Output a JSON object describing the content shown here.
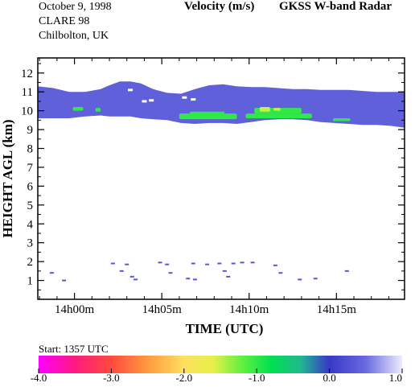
{
  "header": {
    "date": "October   9, 1998",
    "campaign": "CLARE 98",
    "location": "Chilbolton, UK",
    "quantity": "Velocity (m/s)",
    "instrument": "GKSS  W-band Radar"
  },
  "chart_data": {
    "type": "heatmap",
    "title": "Velocity (m/s)",
    "xlabel": "TIME (UTC)",
    "ylabel": "HEIGHT AGL (km)",
    "x_unit": "minutes after 14h00m",
    "xlim": [
      -2.1,
      18.9
    ],
    "ylim": [
      0,
      12.8
    ],
    "x_ticks": [
      {
        "value": 0,
        "label": "14h00m"
      },
      {
        "value": 5,
        "label": "14h05m"
      },
      {
        "value": 10,
        "label": "14h10m"
      },
      {
        "value": 15,
        "label": "14h15m"
      }
    ],
    "y_ticks": [
      {
        "value": 1,
        "label": "1"
      },
      {
        "value": 2,
        "label": "2"
      },
      {
        "value": 3,
        "label": "3"
      },
      {
        "value": 4,
        "label": "4"
      },
      {
        "value": 5,
        "label": "5"
      },
      {
        "value": 6,
        "label": "6"
      },
      {
        "value": 7,
        "label": "7"
      },
      {
        "value": 8,
        "label": "8"
      },
      {
        "value": 9,
        "label": "9"
      },
      {
        "value": 10,
        "label": "10"
      },
      {
        "value": 11,
        "label": "11"
      },
      {
        "value": 12,
        "label": "12"
      }
    ],
    "cloud_layer": {
      "x": [
        -2.1,
        -1.2,
        -0.3,
        0.6,
        1.5,
        2.0,
        2.6,
        3.2,
        3.8,
        4.5,
        5.3,
        6.1,
        6.9,
        7.7,
        8.5,
        9.3,
        10.1,
        10.9,
        11.7,
        12.5,
        13.3,
        14.1,
        14.9,
        15.7,
        16.5,
        17.3,
        18.1,
        18.9
      ],
      "top": [
        11.3,
        11.2,
        11.0,
        11.0,
        11.15,
        11.35,
        11.55,
        11.55,
        11.45,
        11.15,
        10.95,
        10.9,
        11.15,
        11.35,
        11.4,
        11.3,
        11.25,
        11.25,
        11.2,
        11.15,
        11.15,
        11.1,
        11.1,
        11.1,
        11.05,
        11.0,
        11.0,
        11.0
      ],
      "base": [
        9.6,
        9.6,
        9.6,
        9.7,
        9.75,
        9.7,
        9.7,
        9.7,
        9.6,
        9.55,
        9.5,
        9.35,
        9.3,
        9.35,
        9.35,
        9.3,
        9.4,
        9.5,
        9.55,
        9.55,
        9.5,
        9.4,
        9.35,
        9.3,
        9.25,
        9.25,
        9.2,
        9.1
      ],
      "velocity": 0.4
    },
    "features": [
      {
        "x0": -0.1,
        "x1": 0.5,
        "y0": 10.0,
        "y1": 10.2,
        "velocity": -1.0
      },
      {
        "x0": 1.2,
        "x1": 1.5,
        "y0": 9.95,
        "y1": 10.15,
        "velocity": -1.0
      },
      {
        "x0": 6.0,
        "x1": 9.3,
        "y0": 9.55,
        "y1": 9.85,
        "velocity": -1.0
      },
      {
        "x0": 6.6,
        "x1": 8.6,
        "y0": 9.8,
        "y1": 9.95,
        "velocity": -1.0
      },
      {
        "x0": 9.8,
        "x1": 13.6,
        "y0": 9.6,
        "y1": 9.85,
        "velocity": -1.0
      },
      {
        "x0": 10.3,
        "x1": 13.0,
        "y0": 9.85,
        "y1": 10.15,
        "velocity": -1.0
      },
      {
        "x0": 10.6,
        "x1": 11.2,
        "y0": 9.95,
        "y1": 10.2,
        "velocity": -1.5
      },
      {
        "x0": 11.4,
        "x1": 11.8,
        "y0": 10.0,
        "y1": 10.15,
        "velocity": -1.5
      },
      {
        "x0": 14.8,
        "x1": 15.8,
        "y0": 9.45,
        "y1": 9.6,
        "velocity": -1.0
      }
    ],
    "gaps": [
      {
        "x": 3.2,
        "y": 11.1
      },
      {
        "x": 4.4,
        "y": 10.55
      },
      {
        "x": 6.3,
        "y": 10.7
      },
      {
        "x": 6.8,
        "y": 10.6
      },
      {
        "x": 4.0,
        "y": 10.5
      }
    ],
    "low_echoes": [
      {
        "x": -1.3,
        "y": 1.4,
        "velocity": 0.3
      },
      {
        "x": -0.6,
        "y": 1.0,
        "velocity": 0.3
      },
      {
        "x": 2.2,
        "y": 1.9,
        "velocity": 0.3
      },
      {
        "x": 2.7,
        "y": 1.5,
        "velocity": 0.3
      },
      {
        "x": 3.0,
        "y": 1.85,
        "velocity": 0.3
      },
      {
        "x": 3.3,
        "y": 1.2,
        "velocity": 0.3
      },
      {
        "x": 3.5,
        "y": 1.05,
        "velocity": 0.3
      },
      {
        "x": 4.9,
        "y": 1.95,
        "velocity": 0.3
      },
      {
        "x": 5.3,
        "y": 1.85,
        "velocity": 0.3
      },
      {
        "x": 5.5,
        "y": 1.4,
        "velocity": 0.3
      },
      {
        "x": 6.5,
        "y": 1.1,
        "velocity": 0.3
      },
      {
        "x": 6.8,
        "y": 1.9,
        "velocity": 0.3
      },
      {
        "x": 6.9,
        "y": 1.05,
        "velocity": 0.3
      },
      {
        "x": 7.6,
        "y": 1.85,
        "velocity": 0.3
      },
      {
        "x": 8.3,
        "y": 1.9,
        "velocity": 0.3
      },
      {
        "x": 8.6,
        "y": 1.5,
        "velocity": 0.3
      },
      {
        "x": 8.8,
        "y": 1.2,
        "velocity": 0.3
      },
      {
        "x": 9.1,
        "y": 1.9,
        "velocity": 0.3
      },
      {
        "x": 9.6,
        "y": 1.95,
        "velocity": 0.3
      },
      {
        "x": 10.2,
        "y": 1.95,
        "velocity": 0.3
      },
      {
        "x": 11.5,
        "y": 1.8,
        "velocity": 0.3
      },
      {
        "x": 11.8,
        "y": 1.4,
        "velocity": 0.3
      },
      {
        "x": 12.9,
        "y": 1.05,
        "velocity": 0.3
      },
      {
        "x": 13.8,
        "y": 1.1,
        "velocity": 0.3
      },
      {
        "x": 15.6,
        "y": 1.5,
        "velocity": 0.3
      }
    ],
    "colorbar": {
      "caption": "Start: 1357 UTC",
      "range": [
        -4.0,
        1.0
      ],
      "ticks": [
        {
          "value": -4.0,
          "label": "-4.0"
        },
        {
          "value": -3.0,
          "label": "-3.0"
        },
        {
          "value": -2.0,
          "label": "-2.0"
        },
        {
          "value": -1.0,
          "label": "-1.0"
        },
        {
          "value": 0.0,
          "label": "0.0"
        },
        {
          "value": 1.0,
          "label": "1.0"
        }
      ],
      "stops": [
        {
          "value": -4.0,
          "color": "#ff00ff"
        },
        {
          "value": -3.5,
          "color": "#ff1a7f"
        },
        {
          "value": -3.0,
          "color": "#ff4a3c"
        },
        {
          "value": -2.5,
          "color": "#ff9a40"
        },
        {
          "value": -2.0,
          "color": "#ffe060"
        },
        {
          "value": -1.6,
          "color": "#e6f04a"
        },
        {
          "value": -1.2,
          "color": "#60f040"
        },
        {
          "value": -0.8,
          "color": "#00e050"
        },
        {
          "value": -0.4,
          "color": "#20b890"
        },
        {
          "value": 0.0,
          "color": "#3838c8"
        },
        {
          "value": 0.5,
          "color": "#6a6ae0"
        },
        {
          "value": 1.0,
          "color": "#ececff"
        }
      ]
    }
  }
}
